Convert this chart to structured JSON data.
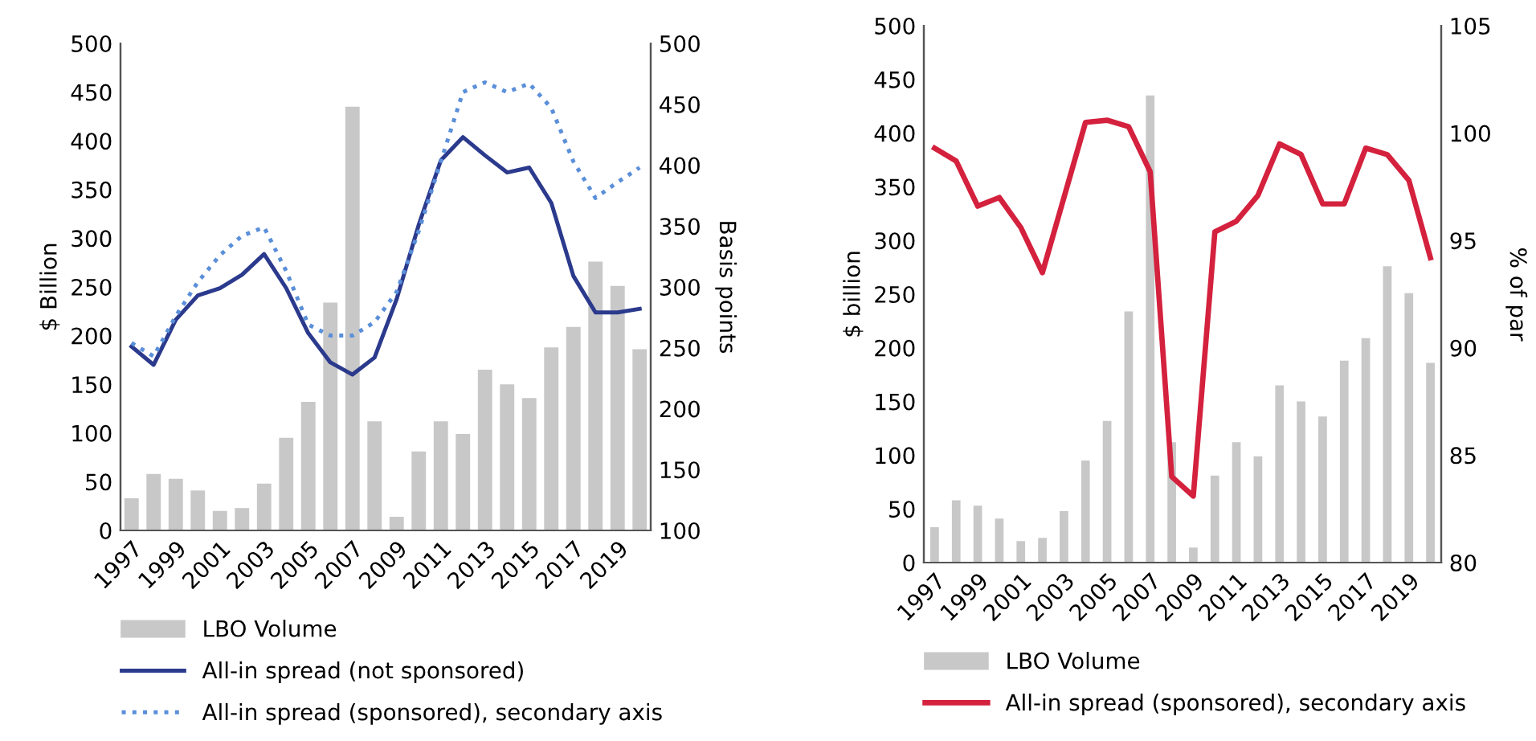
{
  "chart_data": [
    {
      "type": "bar",
      "categories": [
        "1997",
        null,
        "1999",
        null,
        "2001",
        null,
        "2003",
        null,
        "2005",
        null,
        "2007",
        null,
        "2009",
        null,
        "2011",
        null,
        "2013",
        null,
        "2015",
        null,
        "2017",
        null,
        "2019",
        null
      ],
      "ylabel": "$ Billion",
      "y2label": "Basis points",
      "ylim": [
        0,
        500
      ],
      "yticks": [
        0,
        50,
        100,
        150,
        200,
        250,
        300,
        350,
        400,
        450,
        500
      ],
      "y2lim": [
        100,
        500
      ],
      "y2ticks": [
        100,
        150,
        200,
        250,
        300,
        350,
        400,
        450,
        500
      ],
      "legend": "bottom",
      "series": [
        {
          "name": "LBO Volume",
          "color": "#c8c8c8",
          "values": [
            33,
            58,
            53,
            41,
            20,
            23,
            48,
            95,
            132,
            234,
            435,
            112,
            14,
            81,
            112,
            99,
            165,
            150,
            136,
            188,
            209,
            276,
            251,
            186
          ]
        },
        {
          "name": "All-in spread (not sponsored)",
          "type": "line",
          "axis": "y2",
          "line_style": "solid",
          "color": "#2b3a8c",
          "values": [
            251,
            236,
            273,
            293,
            299,
            310,
            327,
            299,
            262,
            238,
            228,
            242,
            290,
            351,
            404,
            423,
            408,
            394,
            398,
            369,
            309,
            279,
            279,
            282
          ]
        },
        {
          "name": "All-in spread (sponsored), secondary axis",
          "type": "line",
          "axis": "y2",
          "line_style": "dotted",
          "color": "#5b8fd9",
          "values": [
            254,
            243,
            276,
            304,
            326,
            342,
            349,
            313,
            269,
            260,
            260,
            271,
            296,
            346,
            403,
            460,
            468,
            460,
            467,
            447,
            403,
            373,
            386,
            398
          ]
        }
      ]
    },
    {
      "type": "bar",
      "categories": [
        "1997",
        null,
        "1999",
        null,
        "2001",
        null,
        "2003",
        null,
        "2005",
        null,
        "2007",
        null,
        "2009",
        null,
        "2011",
        null,
        "2013",
        null,
        "2015",
        null,
        "2017",
        null,
        "2019",
        null
      ],
      "ylabel": "$ billion",
      "y2label": "% of par",
      "ylim": [
        0,
        500
      ],
      "yticks": [
        0,
        50,
        100,
        150,
        200,
        250,
        300,
        350,
        400,
        450,
        500
      ],
      "y2lim": [
        80,
        105
      ],
      "y2ticks": [
        80,
        85,
        90,
        95,
        100,
        105
      ],
      "legend": "bottom",
      "series": [
        {
          "name": "LBO Volume",
          "color": "#c8c8c8",
          "values": [
            33,
            58,
            53,
            41,
            20,
            23,
            48,
            95,
            132,
            234,
            435,
            112,
            14,
            81,
            112,
            99,
            165,
            150,
            136,
            188,
            209,
            276,
            251,
            186
          ]
        },
        {
          "name": "All-in spread (sponsored), secondary axis",
          "type": "line",
          "axis": "y2",
          "line_style": "solid",
          "color": "#d4213d",
          "values": [
            99.3,
            98.7,
            96.6,
            97.0,
            95.6,
            93.5,
            97.0,
            100.5,
            100.6,
            100.3,
            98.2,
            84.0,
            83.1,
            95.4,
            95.9,
            97.1,
            99.5,
            99.0,
            96.7,
            96.7,
            99.3,
            99.0,
            97.8,
            94.2
          ]
        }
      ]
    }
  ]
}
